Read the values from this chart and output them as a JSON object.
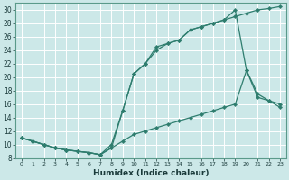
{
  "xlabel": "Humidex (Indice chaleur)",
  "background_color": "#cce8e8",
  "grid_color": "#ffffff",
  "line_color": "#2e7d6e",
  "xlim": [
    -0.5,
    23.5
  ],
  "ylim": [
    8,
    31
  ],
  "xticks": [
    0,
    1,
    2,
    3,
    4,
    5,
    6,
    7,
    8,
    9,
    10,
    11,
    12,
    13,
    14,
    15,
    16,
    17,
    18,
    19,
    20,
    21,
    22,
    23
  ],
  "yticks": [
    8,
    10,
    12,
    14,
    16,
    18,
    20,
    22,
    24,
    26,
    28,
    30
  ],
  "line1_x": [
    0,
    1,
    2,
    3,
    4,
    5,
    6,
    7,
    8,
    9,
    10,
    11,
    12,
    13,
    14,
    15,
    16,
    17,
    18,
    19,
    20,
    21,
    22,
    23
  ],
  "line1_y": [
    11,
    10.5,
    10,
    9.5,
    9.2,
    9,
    8.8,
    8.5,
    9.5,
    15,
    20.5,
    22,
    24.5,
    25,
    25.5,
    27,
    27.5,
    28,
    28.5,
    30,
    21,
    17.5,
    16.5,
    16
  ],
  "line2_x": [
    0,
    1,
    2,
    3,
    4,
    5,
    6,
    7,
    8,
    9,
    10,
    11,
    12,
    13,
    14,
    15,
    16,
    17,
    18,
    19,
    20,
    21,
    22,
    23
  ],
  "line2_y": [
    11,
    10.5,
    10,
    9.5,
    9.2,
    9,
    8.8,
    8.5,
    10,
    15,
    20.5,
    22,
    24,
    25,
    25.5,
    27,
    27.5,
    28,
    28.5,
    29,
    29.5,
    30,
    30.2,
    30.5
  ],
  "line3_x": [
    0,
    1,
    2,
    3,
    4,
    5,
    6,
    7,
    8,
    9,
    10,
    11,
    12,
    13,
    14,
    15,
    16,
    17,
    18,
    19,
    20,
    21,
    22,
    23
  ],
  "line3_y": [
    11,
    10.5,
    10,
    9.5,
    9.2,
    9,
    8.8,
    8.5,
    9.5,
    10.5,
    11.5,
    12,
    12.5,
    13,
    13.5,
    14,
    14.5,
    15,
    15.5,
    16,
    21,
    17,
    16.5,
    15.5
  ]
}
